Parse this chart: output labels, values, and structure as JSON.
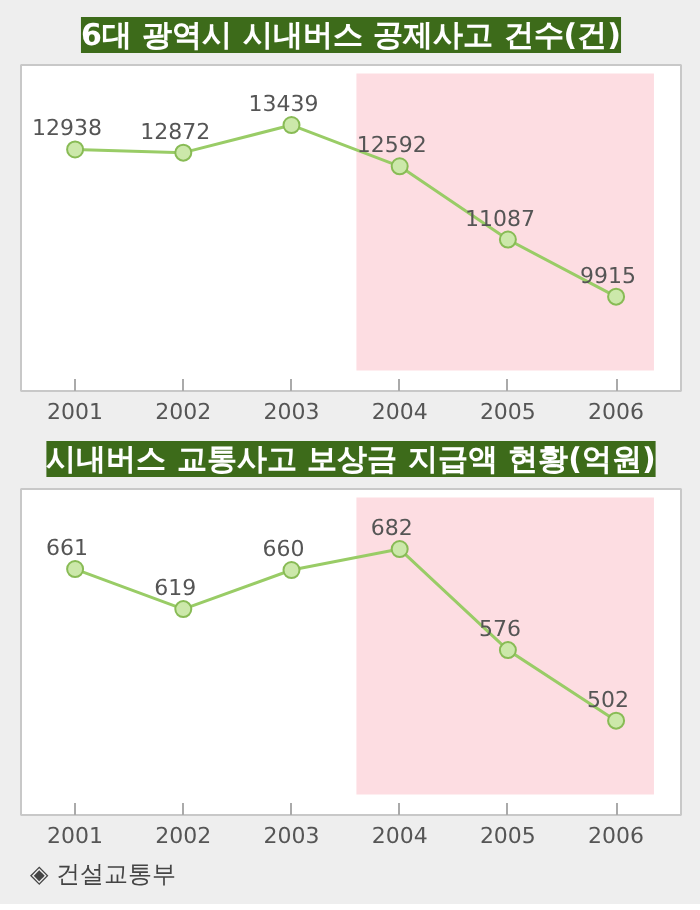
{
  "chart_data": [
    {
      "type": "line",
      "title": "6대 광역시 시내버스 공제사고 건수(건)",
      "categories": [
        "2001",
        "2002",
        "2003",
        "2004",
        "2005",
        "2006"
      ],
      "values": [
        12938,
        12872,
        13439,
        12592,
        11087,
        9915
      ],
      "color": "#99cc66",
      "marker": "circle",
      "data_labels": true,
      "bands": [
        {
          "axis": "x",
          "from": "2004",
          "to": "2006",
          "color": "#fddde2"
        }
      ]
    },
    {
      "type": "line",
      "title": "시내버스 교통사고 보상금 지급액 현황(억원)",
      "categories": [
        "2001",
        "2002",
        "2003",
        "2004",
        "2005",
        "2006"
      ],
      "values": [
        661,
        619,
        660,
        682,
        576,
        502
      ],
      "color": "#99cc66",
      "marker": "circle",
      "data_labels": true,
      "bands": [
        {
          "axis": "x",
          "from": "2004",
          "to": "2006",
          "color": "#fddde2"
        }
      ],
      "annotations": [
        "◈ 건설교통부"
      ]
    }
  ]
}
